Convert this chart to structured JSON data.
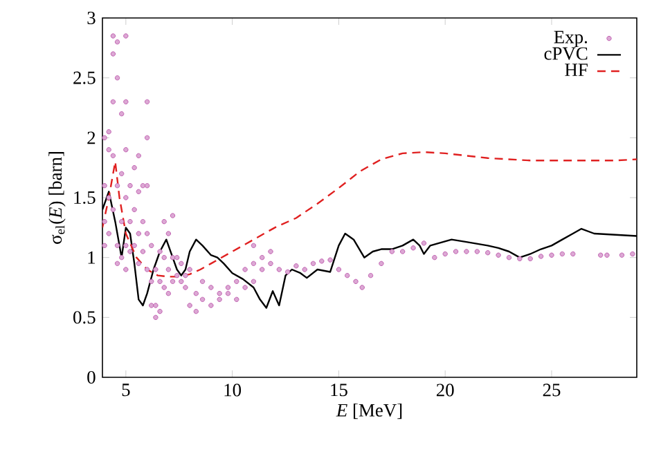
{
  "chart_data": {
    "type": "scatter",
    "xlabel": "*E* [MeV]",
    "ylabel": "σ$_{el}$(*E*) [barn]",
    "xlim": [
      3.9,
      29
    ],
    "ylim": [
      0,
      3
    ],
    "xticks": [
      5,
      10,
      15,
      20,
      25
    ],
    "yticks": [
      0,
      0.5,
      1,
      1.5,
      2,
      2.5,
      3
    ],
    "grid": false,
    "legend": "top right",
    "series": [
      {
        "name": "Exp.",
        "marker": "circle",
        "color": "#c060b0",
        "x": [
          4.0,
          4.0,
          4.0,
          4.0,
          4.2,
          4.2,
          4.2,
          4.2,
          4.4,
          4.4,
          4.4,
          4.4,
          4.4,
          4.6,
          4.6,
          4.6,
          4.6,
          4.6,
          4.8,
          4.8,
          4.8,
          4.8,
          5.0,
          5.0,
          5.0,
          5.0,
          5.0,
          5.0,
          5.2,
          5.2,
          5.2,
          5.4,
          5.4,
          5.4,
          5.6,
          5.6,
          5.6,
          5.6,
          5.8,
          5.8,
          5.8,
          6.0,
          6.0,
          6.0,
          6.0,
          6.0,
          6.2,
          6.2,
          6.2,
          6.4,
          6.4,
          6.4,
          6.6,
          6.6,
          6.6,
          6.8,
          6.8,
          6.8,
          7.0,
          7.0,
          7.0,
          7.2,
          7.2,
          7.2,
          7.4,
          7.4,
          7.6,
          7.6,
          7.8,
          7.8,
          8.0,
          8.0,
          8.3,
          8.3,
          8.6,
          8.6,
          9.0,
          9.0,
          9.4,
          9.4,
          9.8,
          9.8,
          10.2,
          10.2,
          10.6,
          10.6,
          11.0,
          11.0,
          11.0,
          11.4,
          11.4,
          11.8,
          11.8,
          12.2,
          12.6,
          13.0,
          13.4,
          13.8,
          14.2,
          14.6,
          15.0,
          15.4,
          15.8,
          16.1,
          16.5,
          17.0,
          17.5,
          18.0,
          18.5,
          19.0,
          19.5,
          20.0,
          20.5,
          21.0,
          21.5,
          22.0,
          22.5,
          23.0,
          23.5,
          24.0,
          24.5,
          25.0,
          25.5,
          26.0,
          27.3,
          27.6,
          28.3,
          28.8
        ],
        "values": [
          1.1,
          1.3,
          1.6,
          2.0,
          1.9,
          2.05,
          1.5,
          1.2,
          2.85,
          2.7,
          2.3,
          1.85,
          1.4,
          2.8,
          2.5,
          1.6,
          1.1,
          0.95,
          2.2,
          1.7,
          1.3,
          1.0,
          2.85,
          2.3,
          1.9,
          1.5,
          1.1,
          0.9,
          1.6,
          1.3,
          1.05,
          1.75,
          1.4,
          1.1,
          1.85,
          1.55,
          1.2,
          0.95,
          1.6,
          1.3,
          1.05,
          2.3,
          2.0,
          1.6,
          1.2,
          0.9,
          1.1,
          0.8,
          0.6,
          0.9,
          0.6,
          0.5,
          1.05,
          0.8,
          0.55,
          1.3,
          1.0,
          0.75,
          1.2,
          0.9,
          0.7,
          1.35,
          1.0,
          0.8,
          1.0,
          0.85,
          0.95,
          0.8,
          0.85,
          0.75,
          0.9,
          0.6,
          0.7,
          0.55,
          0.8,
          0.65,
          0.75,
          0.6,
          0.7,
          0.65,
          0.75,
          0.7,
          0.8,
          0.65,
          0.9,
          0.75,
          1.1,
          0.95,
          0.8,
          1.0,
          0.9,
          1.05,
          0.95,
          0.9,
          0.88,
          0.93,
          0.9,
          0.95,
          0.97,
          0.98,
          0.9,
          0.85,
          0.8,
          0.75,
          0.85,
          0.95,
          1.05,
          1.05,
          1.08,
          1.12,
          1.0,
          1.03,
          1.05,
          1.05,
          1.05,
          1.04,
          1.02,
          1.0,
          0.99,
          0.99,
          1.01,
          1.02,
          1.03,
          1.03,
          1.02,
          1.02,
          1.02,
          1.03
        ]
      },
      {
        "name": "cPVC",
        "type": "line",
        "marker": "none",
        "line_style": "solid",
        "color": "#000000",
        "x": [
          3.9,
          4.2,
          4.5,
          4.8,
          5.0,
          5.2,
          5.4,
          5.6,
          5.8,
          6.0,
          6.3,
          6.6,
          6.9,
          7.2,
          7.4,
          7.6,
          7.8,
          8.0,
          8.3,
          8.6,
          9.0,
          9.3,
          9.6,
          10.0,
          10.5,
          11.0,
          11.3,
          11.6,
          11.9,
          12.2,
          12.5,
          12.8,
          13.2,
          13.5,
          14.0,
          14.6,
          15.0,
          15.3,
          15.7,
          16.2,
          16.6,
          17.0,
          17.5,
          18.0,
          18.5,
          18.8,
          19.0,
          19.3,
          19.7,
          20.3,
          21.0,
          22.0,
          22.5,
          23.0,
          23.5,
          24.0,
          24.5,
          25.0,
          25.5,
          26.0,
          26.4,
          27.0,
          28.0,
          29.0
        ],
        "values": [
          1.4,
          1.55,
          1.3,
          1.0,
          1.25,
          1.2,
          0.95,
          0.65,
          0.6,
          0.7,
          0.9,
          1.05,
          1.15,
          1.0,
          0.9,
          0.85,
          0.9,
          1.05,
          1.15,
          1.1,
          1.02,
          1.0,
          0.95,
          0.87,
          0.82,
          0.75,
          0.65,
          0.58,
          0.72,
          0.6,
          0.85,
          0.9,
          0.87,
          0.83,
          0.9,
          0.88,
          1.1,
          1.2,
          1.15,
          1.0,
          1.05,
          1.07,
          1.07,
          1.1,
          1.15,
          1.1,
          1.03,
          1.1,
          1.12,
          1.15,
          1.13,
          1.1,
          1.08,
          1.05,
          1.0,
          1.03,
          1.07,
          1.1,
          1.15,
          1.2,
          1.24,
          1.2,
          1.19,
          1.18
        ]
      },
      {
        "name": "HF",
        "type": "line",
        "marker": "none",
        "line_style": "dashed",
        "color": "#e02020",
        "x": [
          3.9,
          4.2,
          4.5,
          4.7,
          5.0,
          5.5,
          6.0,
          6.5,
          7.0,
          7.5,
          8.0,
          8.5,
          9.0,
          10.0,
          11.0,
          12.0,
          13.0,
          14.0,
          15.0,
          16.0,
          17.0,
          18.0,
          19.0,
          20.0,
          21.0,
          22.0,
          23.0,
          24.0,
          25.0,
          26.0,
          27.0,
          28.0,
          29.0
        ],
        "values": [
          1.25,
          1.5,
          1.8,
          1.5,
          1.2,
          1.0,
          0.9,
          0.85,
          0.84,
          0.84,
          0.86,
          0.9,
          0.95,
          1.05,
          1.15,
          1.25,
          1.33,
          1.45,
          1.58,
          1.72,
          1.82,
          1.87,
          1.88,
          1.87,
          1.85,
          1.83,
          1.82,
          1.81,
          1.81,
          1.81,
          1.81,
          1.81,
          1.82
        ]
      }
    ]
  }
}
